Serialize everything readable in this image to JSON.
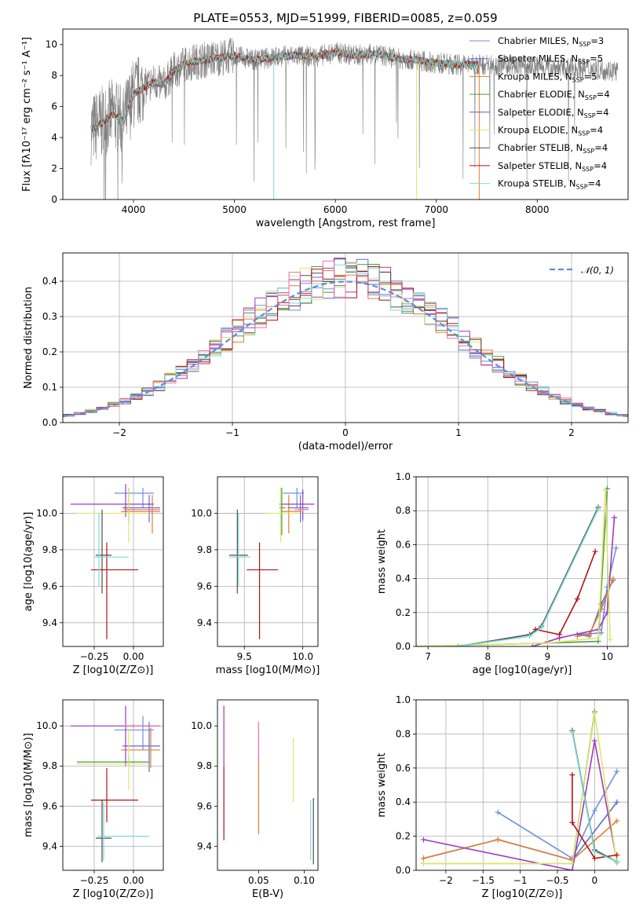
{
  "figure_title": "PLATE=0553, MJD=51999, FIBERID=0085, z=0.059",
  "colors": {
    "Chabrier MILES": "#6f90dc",
    "Salpeter MILES": "#5a6fd0",
    "Kroupa MILES": "#e08030",
    "Chabrier ELODIE": "#4a9a40",
    "Salpeter ELODIE": "#9b3bbf",
    "Kroupa ELODIE": "#dde66a",
    "Chabrier STELIB": "#4d4d4d",
    "Salpeter STELIB": "#b31212",
    "Kroupa STELIB": "#7fd9d9",
    "data": "#808080",
    "normal": "#5b8fd9",
    "pink": "#ee6fa8"
  },
  "chart_data": [
    {
      "id": "spectrum",
      "type": "line",
      "title": "PLATE=0553, MJD=51999, FIBERID=0085, z=0.059",
      "xlabel": "wavelength [Angstrom, rest frame]",
      "ylabel": "Flux [fλ10⁻¹⁷ erg cm⁻² s⁻¹ A⁻¹]",
      "xlim": [
        3300,
        8900
      ],
      "ylim": [
        0,
        11
      ],
      "xticks": [
        4000,
        5000,
        6000,
        7000,
        8000
      ],
      "yticks": [
        0,
        2,
        4,
        6,
        8,
        10
      ],
      "grid": false,
      "legend_position": "top-right",
      "legend": [
        {
          "label": "Chabrier MILES, N",
          "sub": "SSP",
          "suffix": "=3"
        },
        {
          "label": "Salpeter MILES, N",
          "sub": "SSP",
          "suffix": "=5"
        },
        {
          "label": "Kroupa MILES, N",
          "sub": "SSP",
          "suffix": "=5"
        },
        {
          "label": "Chabrier ELODIE, N",
          "sub": "SSP",
          "suffix": "=4"
        },
        {
          "label": "Salpeter ELODIE, N",
          "sub": "SSP",
          "suffix": "=4"
        },
        {
          "label": "Kroupa ELODIE, N",
          "sub": "SSP",
          "suffix": "=4"
        },
        {
          "label": "Chabrier STELIB, N",
          "sub": "SSP",
          "suffix": "=4"
        },
        {
          "label": "Salpeter STELIB, N",
          "sub": "SSP",
          "suffix": "=4"
        },
        {
          "label": "Kroupa STELIB, N",
          "sub": "SSP",
          "suffix": "=4"
        }
      ],
      "continuum": {
        "x": [
          3600,
          3700,
          3800,
          3900,
          4000,
          4100,
          4200,
          4300,
          4400,
          4500,
          4600,
          4700,
          4800,
          4900,
          5000,
          5200,
          5400,
          5600,
          5800,
          6000,
          6200,
          6400,
          6600,
          6800,
          7000,
          7200,
          7400,
          7600,
          7800,
          8000,
          8200,
          8400,
          8600,
          8800
        ],
        "y": [
          4.6,
          5.0,
          5.5,
          5.0,
          6.8,
          7.2,
          7.6,
          7.4,
          8.3,
          8.7,
          8.9,
          9.0,
          9.1,
          9.2,
          9.3,
          9.0,
          9.2,
          9.3,
          9.2,
          9.5,
          9.3,
          9.4,
          9.1,
          9.0,
          8.8,
          8.7,
          8.7,
          8.7,
          8.6,
          8.6,
          8.5,
          8.5,
          8.4,
          8.3
        ]
      },
      "data_range": [
        3580,
        8800
      ],
      "model_range": [
        3580,
        7420
      ]
    },
    {
      "id": "residuals",
      "type": "step",
      "xlabel": "(data-model)/error",
      "ylabel": "Normed distribution",
      "xlim": [
        -2.5,
        2.5
      ],
      "ylim": [
        0,
        0.48
      ],
      "xticks": [
        -2,
        -1,
        0,
        1,
        2
      ],
      "yticks": [
        0.0,
        0.1,
        0.2,
        0.3,
        0.4
      ],
      "grid": true,
      "legend_position": "top-right",
      "legend_label": "𝒩(0, 1)",
      "bin_width": 0.1
    },
    {
      "id": "age-vs-Z",
      "type": "errorbar",
      "xlabel": "Z [log10(Z/Z⊙)]",
      "ylabel": "age  [log10(age/yr)]",
      "xlim": [
        -0.45,
        0.19
      ],
      "ylim": [
        9.27,
        10.2
      ],
      "xticks": [
        -0.25,
        0.0
      ],
      "yticks": [
        9.4,
        9.6,
        9.8,
        10.0
      ],
      "grid": true,
      "points": [
        {
          "s": "Chabrier MILES",
          "x": 0.06,
          "y": 10.11,
          "xlo": -0.12,
          "xhi": 0.13,
          "ylo": 10.03,
          "yhi": 10.14
        },
        {
          "s": "Salpeter MILES",
          "x": 0.1,
          "y": 10.03,
          "xlo": -0.07,
          "xhi": 0.17,
          "ylo": 9.95,
          "yhi": 10.1
        },
        {
          "s": "Kroupa MILES",
          "x": 0.12,
          "y": 10.01,
          "xlo": -0.08,
          "xhi": 0.17,
          "ylo": 9.89,
          "yhi": 10.1
        },
        {
          "s": "Chabrier ELODIE",
          "x": -0.03,
          "y": 10.03,
          "xlo": -0.06,
          "xhi": -0.02,
          "ylo": 9.95,
          "yhi": 10.14
        },
        {
          "s": "Salpeter ELODIE",
          "x": -0.05,
          "y": 10.05,
          "xlo": -0.4,
          "xhi": 0.13,
          "ylo": 9.98,
          "yhi": 10.16
        },
        {
          "s": "Kroupa ELODIE",
          "x": -0.03,
          "y": 10.0,
          "xlo": -0.36,
          "xhi": 0.1,
          "ylo": 9.84,
          "yhi": 10.14
        },
        {
          "s": "Chabrier STELIB",
          "x": -0.2,
          "y": 9.77,
          "xlo": -0.24,
          "xhi": -0.14,
          "ylo": 9.56,
          "yhi": 10.02
        },
        {
          "s": "Salpeter STELIB",
          "x": -0.17,
          "y": 9.69,
          "xlo": -0.27,
          "xhi": 0.03,
          "ylo": 9.31,
          "yhi": 9.84
        },
        {
          "s": "Kroupa STELIB",
          "x": -0.22,
          "y": 9.76,
          "xlo": -0.25,
          "xhi": -0.03,
          "ylo": 9.6,
          "yhi": 10.0
        },
        {
          "s": "pink",
          "x": 0.0,
          "y": 10.02,
          "xlo": -0.06,
          "xhi": 0.17,
          "ylo": 10.01,
          "yhi": 10.03
        }
      ]
    },
    {
      "id": "age-vs-mass",
      "type": "errorbar",
      "xlabel": "mass [log10(M/M⊙)]",
      "ylabel": "",
      "xlim": [
        9.27,
        10.13
      ],
      "ylim": [
        9.27,
        10.2
      ],
      "xticks": [
        9.5,
        10.0
      ],
      "yticks": [
        9.4,
        9.6,
        9.8,
        10.0
      ],
      "grid": true,
      "points": [
        {
          "s": "Chabrier MILES",
          "x": 9.95,
          "y": 10.11,
          "xlo": 9.83,
          "xhi": 10.01,
          "ylo": 10.03,
          "yhi": 10.14
        },
        {
          "s": "Salpeter MILES",
          "x": 9.98,
          "y": 10.03,
          "xlo": 9.87,
          "xhi": 10.05,
          "ylo": 9.95,
          "yhi": 10.1
        },
        {
          "s": "Kroupa MILES",
          "x": 9.88,
          "y": 10.01,
          "xlo": 9.82,
          "xhi": 9.99,
          "ylo": 9.89,
          "yhi": 10.1
        },
        {
          "s": "Chabrier ELODIE",
          "x": 9.82,
          "y": 10.03,
          "xlo": 9.8,
          "xhi": 9.85,
          "ylo": 9.88,
          "yhi": 10.14
        },
        {
          "s": "Salpeter ELODIE",
          "x": 10.0,
          "y": 10.05,
          "xlo": 9.8,
          "xhi": 10.1,
          "ylo": 9.96,
          "yhi": 10.13
        },
        {
          "s": "Kroupa ELODIE",
          "x": 9.81,
          "y": 10.0,
          "xlo": 9.68,
          "xhi": 9.98,
          "ylo": 9.84,
          "yhi": 10.14
        },
        {
          "s": "Chabrier STELIB",
          "x": 9.44,
          "y": 9.77,
          "xlo": 9.37,
          "xhi": 9.53,
          "ylo": 9.56,
          "yhi": 10.02
        },
        {
          "s": "Salpeter STELIB",
          "x": 9.63,
          "y": 9.69,
          "xlo": 9.52,
          "xhi": 9.79,
          "ylo": 9.31,
          "yhi": 9.84
        },
        {
          "s": "Kroupa STELIB",
          "x": 9.45,
          "y": 9.76,
          "xlo": 9.37,
          "xhi": 9.55,
          "ylo": 9.6,
          "yhi": 10.0
        },
        {
          "s": "pink",
          "x": 10.0,
          "y": 10.02,
          "xlo": 9.93,
          "xhi": 10.05,
          "ylo": 10.01,
          "yhi": 10.03
        }
      ]
    },
    {
      "id": "massweight-vs-age",
      "type": "line",
      "xlabel": "age  [log10(age/yr)]",
      "ylabel": "mass weight",
      "xlim": [
        6.8,
        10.35
      ],
      "ylim": [
        0,
        1.0
      ],
      "xticks": [
        7,
        8,
        9,
        10
      ],
      "yticks": [
        0.0,
        0.2,
        0.4,
        0.6,
        0.8,
        1.0
      ],
      "grid": true,
      "series": [
        {
          "s": "Chabrier MILES",
          "x": [
            9.5,
            9.9,
            10.0,
            10.15
          ],
          "y": [
            0.07,
            0.08,
            0.35,
            0.58
          ]
        },
        {
          "s": "Salpeter MILES",
          "x": [
            9.5,
            9.7,
            9.9,
            10.1
          ],
          "y": [
            0.07,
            0.06,
            0.25,
            0.39
          ]
        },
        {
          "s": "Kroupa MILES",
          "x": [
            9.5,
            9.7,
            9.9,
            10.1
          ],
          "y": [
            0.06,
            0.07,
            0.22,
            0.4
          ]
        },
        {
          "s": "Chabrier ELODIE",
          "x": [
            6.8,
            8.0,
            9.0,
            9.85,
            10.0
          ],
          "y": [
            0.0,
            0.01,
            0.02,
            0.03,
            0.93
          ]
        },
        {
          "s": "Salpeter ELODIE",
          "x": [
            8.75,
            9.2,
            9.85,
            10.0,
            10.12
          ],
          "y": [
            0.0,
            0.05,
            0.1,
            0.2,
            0.76
          ]
        },
        {
          "s": "Kroupa ELODIE",
          "x": [
            6.8,
            8.0,
            9.0,
            9.85,
            9.97,
            10.05
          ],
          "y": [
            0.0,
            0.01,
            0.02,
            0.05,
            0.92,
            0.04
          ]
        },
        {
          "s": "Chabrier STELIB",
          "x": [
            7.5,
            8.7,
            8.9,
            9.85
          ],
          "y": [
            0.0,
            0.07,
            0.12,
            0.82
          ]
        },
        {
          "s": "Salpeter STELIB",
          "x": [
            8.8,
            9.2,
            9.5,
            9.8
          ],
          "y": [
            0.1,
            0.07,
            0.28,
            0.56
          ]
        },
        {
          "s": "Kroupa STELIB",
          "x": [
            7.5,
            8.7,
            8.9,
            9.85
          ],
          "y": [
            0.0,
            0.06,
            0.11,
            0.81
          ]
        }
      ]
    },
    {
      "id": "mass-vs-Z",
      "type": "errorbar",
      "xlabel": "Z [log10(Z/Z⊙)]",
      "ylabel": "mass [log10(M/M⊙)]",
      "xlim": [
        -0.45,
        0.19
      ],
      "ylim": [
        9.28,
        10.13
      ],
      "xticks": [
        -0.25,
        0.0
      ],
      "yticks": [
        9.4,
        9.6,
        9.8,
        10.0
      ],
      "grid": true,
      "points": [
        {
          "s": "Chabrier MILES",
          "x": 0.06,
          "y": 9.98,
          "xlo": -0.12,
          "xhi": 0.13,
          "ylo": 9.88,
          "yhi": 10.05
        },
        {
          "s": "Salpeter MILES",
          "x": 0.1,
          "y": 9.9,
          "xlo": -0.07,
          "xhi": 0.17,
          "ylo": 9.77,
          "yhi": 10.02
        },
        {
          "s": "Kroupa MILES",
          "x": 0.11,
          "y": 9.88,
          "xlo": -0.08,
          "xhi": 0.17,
          "ylo": 9.79,
          "yhi": 9.99
        },
        {
          "s": "Chabrier ELODIE",
          "x": -0.03,
          "y": 9.82,
          "xlo": -0.36,
          "xhi": 0.1,
          "ylo": 9.8,
          "yhi": 9.85
        },
        {
          "s": "Salpeter ELODIE",
          "x": -0.05,
          "y": 10.0,
          "xlo": -0.4,
          "xhi": 0.17,
          "ylo": 9.8,
          "yhi": 10.1
        },
        {
          "s": "Kroupa ELODIE",
          "x": -0.03,
          "y": 9.81,
          "xlo": -0.36,
          "xhi": 0.1,
          "ylo": 9.68,
          "yhi": 9.98
        },
        {
          "s": "Chabrier STELIB",
          "x": -0.2,
          "y": 9.44,
          "xlo": -0.24,
          "xhi": -0.14,
          "ylo": 9.32,
          "yhi": 9.63
        },
        {
          "s": "Salpeter STELIB",
          "x": -0.17,
          "y": 9.63,
          "xlo": -0.27,
          "xhi": 0.03,
          "ylo": 9.52,
          "yhi": 9.79
        },
        {
          "s": "Kroupa STELIB",
          "x": -0.19,
          "y": 9.45,
          "xlo": -0.23,
          "xhi": 0.1,
          "ylo": 9.33,
          "yhi": 9.62
        },
        {
          "s": "pink",
          "x": 0.0,
          "y": 10.0,
          "xlo": -0.06,
          "xhi": 0.17,
          "ylo": 9.99,
          "yhi": 10.01
        }
      ]
    },
    {
      "id": "mass-vs-EBV",
      "type": "errorbar",
      "xlabel": "E(B-V)",
      "ylabel": "",
      "xlim": [
        0.005,
        0.115
      ],
      "ylim": [
        9.28,
        10.13
      ],
      "xticks": [
        0.05,
        0.1
      ],
      "yticks": [
        9.4,
        9.6,
        9.8,
        10.0
      ],
      "grid": false,
      "points": [
        {
          "s": "Salpeter STELIB",
          "x": 0.012,
          "y": 9.6,
          "xlo": 0.012,
          "xhi": 0.012,
          "ylo": 9.43,
          "yhi": 9.8
        },
        {
          "s": "Salpeter ELODIE",
          "x": 0.012,
          "y": 9.95,
          "xlo": 0.012,
          "xhi": 0.012,
          "ylo": 9.8,
          "yhi": 10.1
        },
        {
          "s": "Kroupa MILES",
          "x": 0.05,
          "y": 9.65,
          "xlo": 0.05,
          "xhi": 0.05,
          "ylo": 9.46,
          "yhi": 9.86
        },
        {
          "s": "pink",
          "x": 0.05,
          "y": 9.9,
          "xlo": 0.05,
          "xhi": 0.05,
          "ylo": 9.82,
          "yhi": 10.02
        },
        {
          "s": "Kroupa ELODIE",
          "x": 0.088,
          "y": 9.78,
          "xlo": 0.088,
          "xhi": 0.088,
          "ylo": 9.62,
          "yhi": 9.94
        },
        {
          "s": "Kroupa STELIB",
          "x": 0.107,
          "y": 9.48,
          "xlo": 0.107,
          "xhi": 0.107,
          "ylo": 9.33,
          "yhi": 9.63
        },
        {
          "s": "Chabrier STELIB",
          "x": 0.11,
          "y": 9.45,
          "xlo": 0.11,
          "xhi": 0.11,
          "ylo": 9.31,
          "yhi": 9.64
        }
      ]
    },
    {
      "id": "massweight-vs-Z",
      "type": "line",
      "xlabel": "Z [log10(Z/Z⊙)]",
      "ylabel": "mass weight",
      "xlim": [
        -2.4,
        0.45
      ],
      "ylim": [
        0,
        1.0
      ],
      "xticks": [
        -2.0,
        -1.5,
        -1.0,
        -0.5,
        0.0
      ],
      "yticks": [
        0.0,
        0.2,
        0.4,
        0.6,
        0.8,
        1.0
      ],
      "grid": true,
      "series": [
        {
          "s": "Chabrier MILES",
          "x": [
            -1.3,
            -0.3,
            0.0,
            0.3
          ],
          "y": [
            0.34,
            0.07,
            0.35,
            0.58
          ]
        },
        {
          "s": "Salpeter MILES",
          "x": [
            -2.3,
            -1.3,
            -0.3,
            0.3
          ],
          "y": [
            0.07,
            0.18,
            0.06,
            0.4
          ]
        },
        {
          "s": "Kroupa MILES",
          "x": [
            -2.3,
            -1.3,
            -0.3,
            0.3
          ],
          "y": [
            0.07,
            0.18,
            0.06,
            0.29
          ]
        },
        {
          "s": "Chabrier ELODIE",
          "x": [
            -2.3,
            -0.3,
            0.0
          ],
          "y": [
            0.04,
            0.04,
            0.93
          ]
        },
        {
          "s": "Salpeter ELODIE",
          "x": [
            -2.3,
            -0.3,
            0.0,
            0.3
          ],
          "y": [
            0.18,
            0.0,
            0.76,
            0.05
          ]
        },
        {
          "s": "Kroupa ELODIE",
          "x": [
            -2.3,
            -0.3,
            0.0,
            0.3
          ],
          "y": [
            0.04,
            0.04,
            0.92,
            0.04
          ]
        },
        {
          "s": "Chabrier STELIB",
          "x": [
            -0.3,
            0.0,
            0.3
          ],
          "y": [
            0.82,
            0.12,
            0.05
          ]
        },
        {
          "s": "Salpeter STELIB",
          "x": [
            -0.3,
            -0.3,
            0.0,
            0.3
          ],
          "y": [
            0.56,
            0.28,
            0.07,
            0.09
          ]
        },
        {
          "s": "Kroupa STELIB",
          "x": [
            -0.3,
            0.0,
            0.3
          ],
          "y": [
            0.81,
            0.11,
            0.05
          ]
        }
      ]
    }
  ]
}
